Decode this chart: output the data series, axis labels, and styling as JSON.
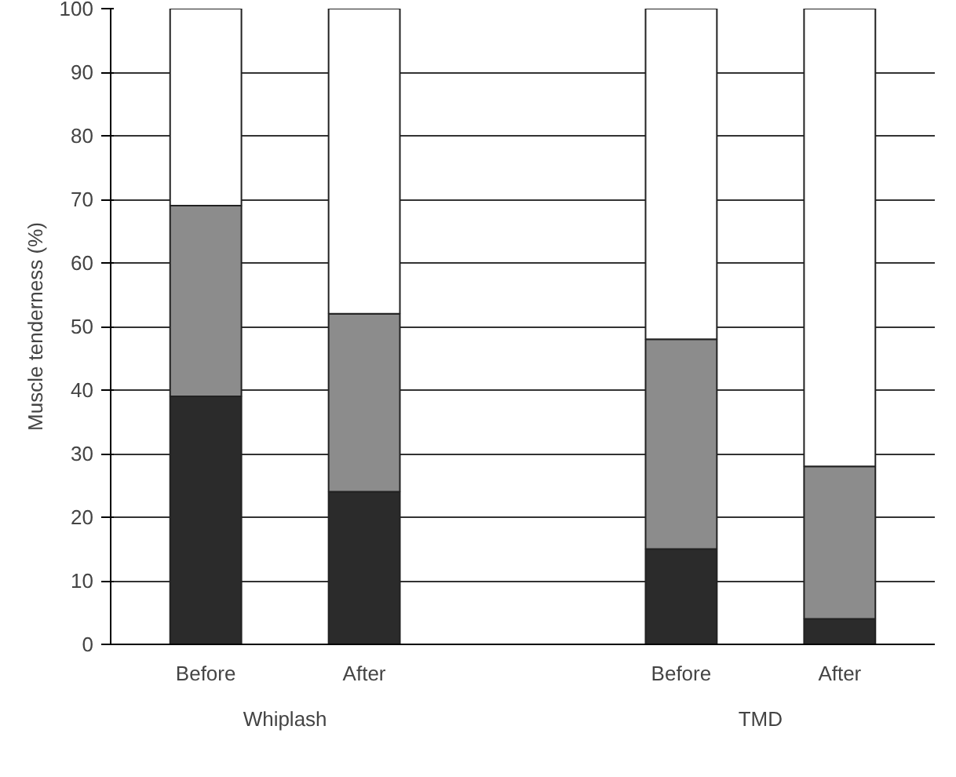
{
  "chart_data": {
    "type": "bar",
    "stacked": true,
    "ylabel": "Muscle tenderness (%)",
    "categories": [
      "Before",
      "After",
      null,
      "Before",
      "After"
    ],
    "series": [
      {
        "color": "#2b2b2b",
        "values": [
          39,
          24,
          null,
          15,
          4
        ]
      },
      {
        "color": "#8c8c8c",
        "values": [
          30,
          28,
          null,
          33,
          24
        ]
      },
      {
        "color": "#ffffff",
        "values": [
          31,
          48,
          null,
          52,
          72
        ]
      }
    ],
    "ylim": [
      0,
      100
    ],
    "yticks": [
      0,
      10,
      20,
      30,
      40,
      50,
      60,
      70,
      80,
      90,
      100
    ],
    "grid": "y",
    "annotations": [
      "Whiplash",
      "TMD"
    ]
  }
}
